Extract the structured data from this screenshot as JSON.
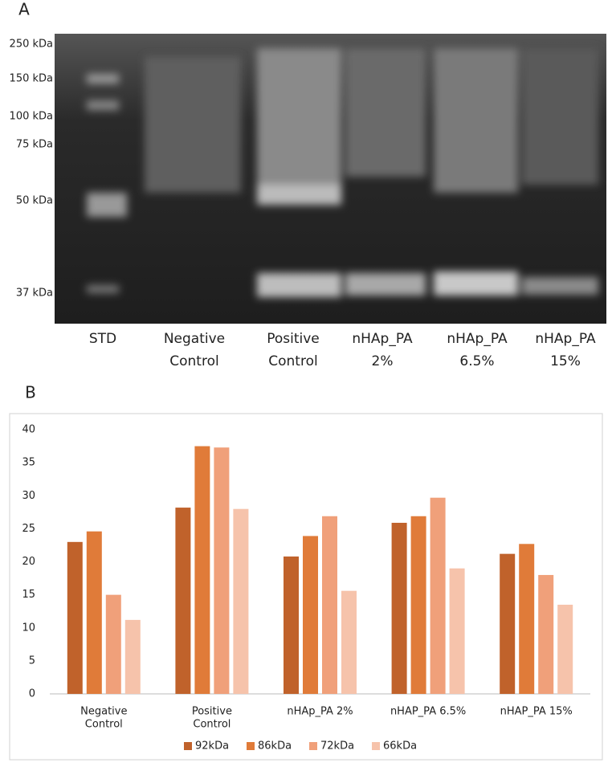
{
  "panel_a": {
    "label": "A",
    "markers": [
      "250 kDa",
      "150 kDa",
      "100 kDa",
      "75 kDa",
      "50 kDa",
      "37 kDa"
    ],
    "lanes": [
      [
        "STD"
      ],
      [
        "Negative",
        "Control"
      ],
      [
        "Positive",
        "Control"
      ],
      [
        "nHAp_PA",
        "2%"
      ],
      [
        "nHAp_PA",
        "6.5%"
      ],
      [
        "nHAp_PA",
        "15%"
      ]
    ]
  },
  "panel_b": {
    "label": "B"
  },
  "chart_data": {
    "type": "bar",
    "categories": [
      [
        "Negative",
        "Control"
      ],
      [
        "Positive",
        "Control"
      ],
      [
        "nHAp_PA 2%"
      ],
      [
        "nHAP_PA 6.5%"
      ],
      [
        "nHAP_PA 15%"
      ]
    ],
    "series": [
      {
        "name": "92kDa",
        "color": "#c0622b",
        "values": [
          23,
          28.2,
          20.8,
          25.9,
          21.2
        ]
      },
      {
        "name": "86kDa",
        "color": "#e07b39",
        "values": [
          24.6,
          37.5,
          23.9,
          26.9,
          22.7
        ]
      },
      {
        "name": "72kDa",
        "color": "#f0a07a",
        "values": [
          15,
          37.3,
          26.9,
          29.7,
          18
        ]
      },
      {
        "name": "66kDa",
        "color": "#f6c3ab",
        "values": [
          11.2,
          28,
          15.6,
          19,
          13.5
        ]
      }
    ],
    "ylim": [
      0,
      40
    ],
    "yticks": [
      0,
      5,
      10,
      15,
      20,
      25,
      30,
      35,
      40
    ],
    "grid": false,
    "legend": "bottom"
  }
}
